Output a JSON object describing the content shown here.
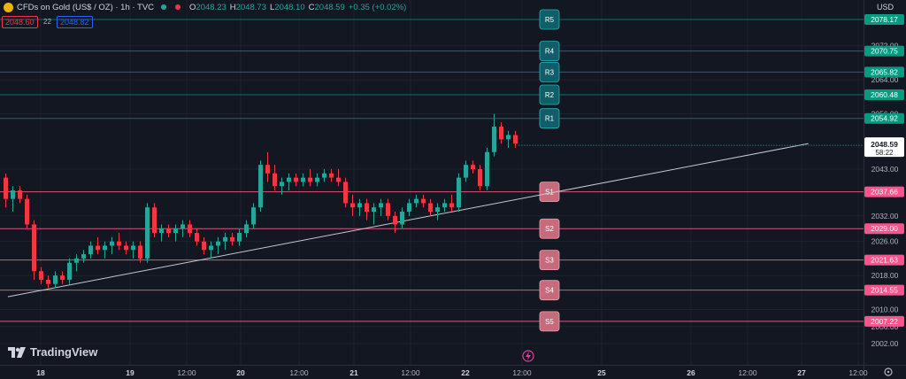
{
  "header": {
    "symbol": "CFDs on Gold (US$ / OZ) · 1h · TVC",
    "o_label": "O",
    "o": "2048.23",
    "h_label": "H",
    "h": "2048.73",
    "l_label": "L",
    "l": "2048.10",
    "c_label": "C",
    "c": "2048.59",
    "change": "+0.35 (+0.02%)"
  },
  "trade": {
    "sell": "2048.60",
    "spread": "22",
    "buy": "2048.82"
  },
  "currency": "USD",
  "brand": "TradingView",
  "colors": {
    "background": "#131722",
    "grid": "#1e222d",
    "up": "#26a69a",
    "down": "#f23645",
    "resistance": "#0f6e72",
    "resistance_label": "#089981",
    "support": "#e05576",
    "support_label": "#c76b7c",
    "trendline": "#c5c8d1",
    "text": "#d1d4dc",
    "axis_text": "#b2b5be"
  },
  "chart_data": {
    "type": "candlestick",
    "ylim": [
      1997,
      2081.5
    ],
    "y_ticks": [
      "2072.00",
      "2064.00",
      "2056.00",
      "2043.00",
      "2032.00",
      "2026.00",
      "2018.00",
      "2010.00",
      "2006.00",
      "2002.00"
    ],
    "x_ticks": [
      "18",
      "19",
      "12:00",
      "20",
      "12:00",
      "21",
      "12:00",
      "22",
      "12:00",
      "25",
      "26",
      "12:00",
      "27",
      "12:00"
    ],
    "current_price": "2048.59",
    "countdown": "58:22",
    "resistance": [
      {
        "label": "R5",
        "price": "2078.17"
      },
      {
        "label": "R4",
        "price": "2070.75"
      },
      {
        "label": "R3",
        "price": "2065.82"
      },
      {
        "label": "R2",
        "price": "2060.48"
      },
      {
        "label": "R1",
        "price": "2054.92"
      }
    ],
    "support": [
      {
        "label": "S1",
        "price": "2037.66"
      },
      {
        "label": "S2",
        "price": "2029.00"
      },
      {
        "label": "S3",
        "price": "2021.63"
      },
      {
        "label": "S4",
        "price": "2014.55"
      },
      {
        "label": "S5",
        "price": "2007.22"
      }
    ],
    "trendline": [
      [
        0.3,
        2013
      ],
      [
        113.4,
        2049
      ]
    ],
    "candles": [
      [
        0,
        2041,
        2042,
        2034,
        2036
      ],
      [
        1,
        2036,
        2039,
        2033,
        2038
      ],
      [
        2,
        2038,
        2039,
        2035,
        2036
      ],
      [
        3,
        2036,
        2037,
        2029,
        2030
      ],
      [
        4,
        2030,
        2031,
        2017,
        2019
      ],
      [
        5,
        2019,
        2020,
        2016,
        2017
      ],
      [
        6,
        2017,
        2018,
        2015,
        2016
      ],
      [
        7,
        2016,
        2019,
        2015,
        2018
      ],
      [
        8,
        2018,
        2019,
        2016,
        2017
      ],
      [
        9,
        2017,
        2022,
        2016,
        2021
      ],
      [
        10,
        2021,
        2023,
        2019,
        2022
      ],
      [
        11,
        2022,
        2024,
        2021,
        2023
      ],
      [
        12,
        2023,
        2026,
        2022,
        2025
      ],
      [
        13,
        2025,
        2027,
        2023,
        2024
      ],
      [
        14,
        2024,
        2026,
        2022,
        2025
      ],
      [
        15,
        2025,
        2027,
        2023,
        2026
      ],
      [
        16,
        2026,
        2028,
        2024,
        2025
      ],
      [
        17,
        2025,
        2026,
        2023,
        2024
      ],
      [
        18,
        2024,
        2026,
        2022,
        2025
      ],
      [
        19,
        2025,
        2026,
        2021,
        2022
      ],
      [
        20,
        2022,
        2035,
        2021,
        2034
      ],
      [
        21,
        2034,
        2035,
        2027,
        2028
      ],
      [
        22,
        2028,
        2030,
        2026,
        2029
      ],
      [
        23,
        2029,
        2030,
        2027,
        2028
      ],
      [
        24,
        2028,
        2030,
        2026,
        2029
      ],
      [
        25,
        2029,
        2031,
        2027,
        2030
      ],
      [
        26,
        2030,
        2031,
        2027,
        2028
      ],
      [
        27,
        2028,
        2029,
        2025,
        2026
      ],
      [
        28,
        2026,
        2027,
        2023,
        2024
      ],
      [
        29,
        2024,
        2026,
        2022,
        2025
      ],
      [
        30,
        2025,
        2027,
        2023,
        2026
      ],
      [
        31,
        2026,
        2028,
        2024,
        2027
      ],
      [
        32,
        2027,
        2028,
        2025,
        2026
      ],
      [
        33,
        2026,
        2029,
        2025,
        2028
      ],
      [
        34,
        2028,
        2031,
        2027,
        2030
      ],
      [
        35,
        2030,
        2035,
        2029,
        2034
      ],
      [
        36,
        2034,
        2045,
        2033,
        2044
      ],
      [
        37,
        2044,
        2047,
        2040,
        2042
      ],
      [
        38,
        2042,
        2044,
        2038,
        2039
      ],
      [
        39,
        2039,
        2041,
        2037,
        2040
      ],
      [
        40,
        2040,
        2042,
        2038,
        2041
      ],
      [
        41,
        2041,
        2042,
        2039,
        2040
      ],
      [
        42,
        2040,
        2042,
        2039,
        2041
      ],
      [
        43,
        2041,
        2043,
        2039,
        2040
      ],
      [
        44,
        2040,
        2042,
        2039,
        2041
      ],
      [
        45,
        2041,
        2043,
        2040,
        2042
      ],
      [
        46,
        2042,
        2043,
        2040,
        2041
      ],
      [
        47,
        2041,
        2043,
        2039,
        2040
      ],
      [
        48,
        2040,
        2041,
        2034,
        2035
      ],
      [
        49,
        2035,
        2037,
        2032,
        2034
      ],
      [
        50,
        2034,
        2036,
        2032,
        2035
      ],
      [
        51,
        2035,
        2036,
        2031,
        2033
      ],
      [
        52,
        2033,
        2035,
        2030,
        2034
      ],
      [
        53,
        2034,
        2036,
        2032,
        2035
      ],
      [
        54,
        2035,
        2036,
        2031,
        2032
      ],
      [
        55,
        2032,
        2033,
        2028,
        2030
      ],
      [
        56,
        2030,
        2034,
        2029,
        2033
      ],
      [
        57,
        2033,
        2036,
        2032,
        2035
      ],
      [
        58,
        2035,
        2037,
        2034,
        2036
      ],
      [
        59,
        2036,
        2037,
        2034,
        2035
      ],
      [
        60,
        2035,
        2036,
        2032,
        2033
      ],
      [
        61,
        2033,
        2035,
        2031,
        2034
      ],
      [
        62,
        2034,
        2036,
        2033,
        2035
      ],
      [
        63,
        2035,
        2037,
        2033,
        2034
      ],
      [
        64,
        2034,
        2042,
        2033,
        2041
      ],
      [
        65,
        2041,
        2045,
        2040,
        2044
      ],
      [
        66,
        2044,
        2045,
        2042,
        2043
      ],
      [
        67,
        2043,
        2044,
        2038,
        2039
      ],
      [
        68,
        2039,
        2048,
        2038,
        2047
      ],
      [
        69,
        2047,
        2056,
        2046,
        2053
      ],
      [
        70,
        2053,
        2054,
        2049,
        2050
      ],
      [
        71,
        2050,
        2052,
        2048,
        2051
      ],
      [
        72,
        2051,
        2052,
        2048,
        2049
      ]
    ]
  }
}
